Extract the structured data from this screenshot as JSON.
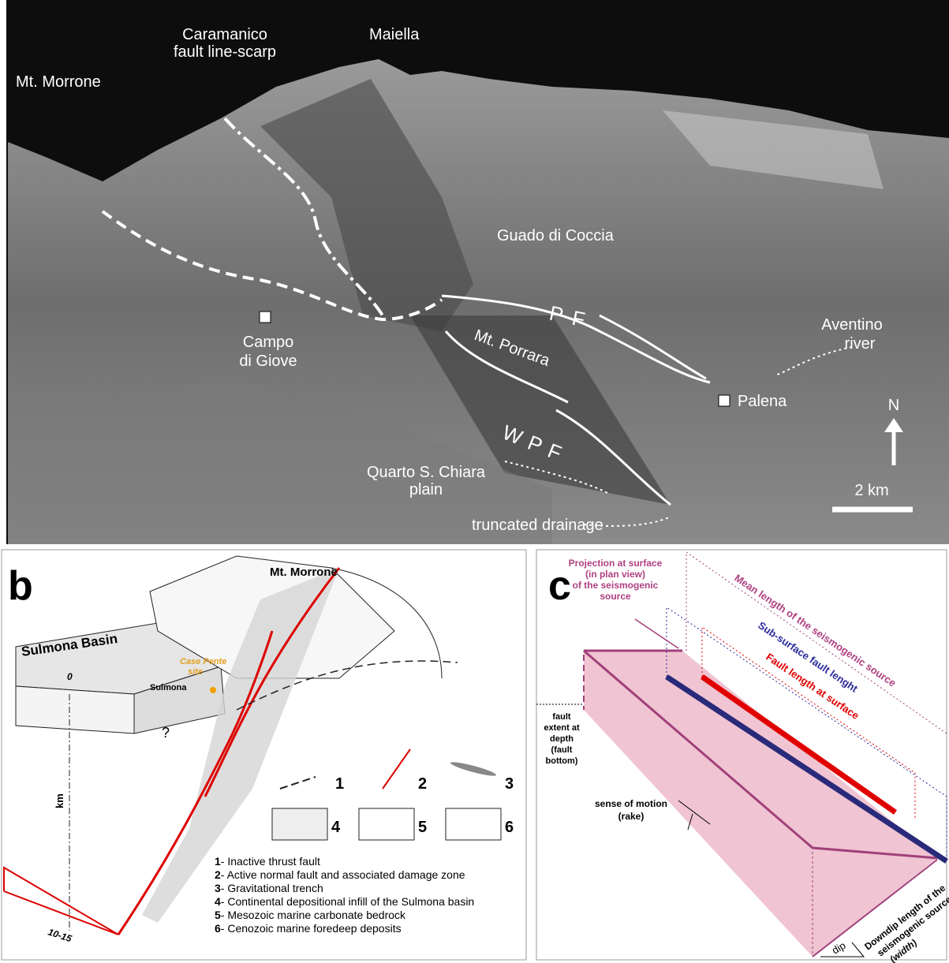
{
  "panel_a": {
    "labels": {
      "mt_morrone": "Mt. Morrone",
      "maiella": "Maiella",
      "caramanico": [
        "Caramanico",
        "fault line-scarp"
      ],
      "guado": "Guado di Coccia",
      "pf": "PF",
      "porrara": "Mt. Porrara",
      "campo": [
        "Campo",
        "di Giove"
      ],
      "aventino": [
        "Aventino",
        "river"
      ],
      "palena": "Palena",
      "north": "N",
      "wpf": "WPF",
      "quarto": [
        "Quarto S. Chiara",
        "plain"
      ],
      "drainage": "truncated drainage",
      "scale": "2 km"
    }
  },
  "panel_b": {
    "letter": "b",
    "mt_morrone": "Mt. Morrone",
    "basin": "Sulmona Basin",
    "site": [
      "Case Pente",
      "site"
    ],
    "town": "Sulmona",
    "depth_top": "0",
    "depth_unit": "km",
    "depth_bottom": "10-15",
    "unknown": "?",
    "legend_numbers": [
      "1",
      "2",
      "3",
      "4",
      "5",
      "6"
    ],
    "legend": [
      [
        "1",
        "- Inactive thrust fault"
      ],
      [
        "2",
        "- Active normal fault and associated damage zone"
      ],
      [
        "3",
        "- Gravitational trench"
      ],
      [
        "4",
        "- Continental depositional infill of the Sulmona basin"
      ],
      [
        "5",
        "- Mesozoic marine carbonate bedrock"
      ],
      [
        "6",
        "- Cenozoic marine foredeep deposits"
      ]
    ]
  },
  "panel_c": {
    "letter": "c",
    "projection": [
      "Projection at surface",
      "(in plan view)",
      "of the seismogenic",
      "source"
    ],
    "mean_length": "Mean length of the seismogenic source",
    "subsurface": "Sub-surface fault lenght",
    "surface": "Fault length at surface",
    "bottom": [
      "fault",
      "extent at",
      "depth",
      "(fault",
      "bottom)"
    ],
    "rake": [
      "sense of motion",
      "(rake)"
    ],
    "downdip": [
      "Downdip length of the",
      "seismogenic source",
      "(width)"
    ],
    "dip": "dip"
  }
}
